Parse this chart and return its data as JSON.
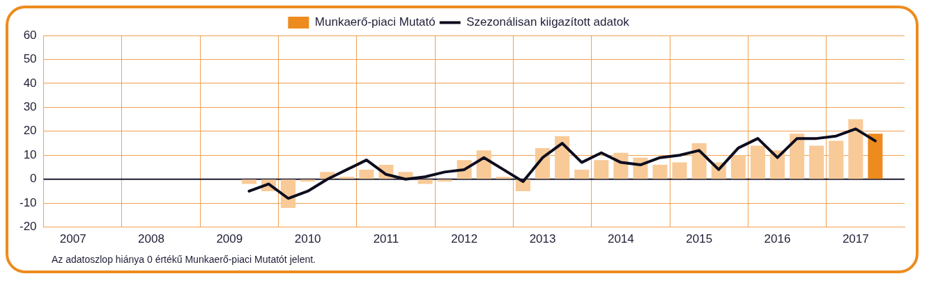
{
  "chart_data": {
    "type": "bar",
    "categories": [
      null,
      "2007",
      null,
      null,
      null,
      "2008",
      null,
      null,
      null,
      "2009",
      null,
      null,
      null,
      "2010",
      null,
      null,
      null,
      "2011",
      null,
      null,
      null,
      "2012",
      null,
      null,
      null,
      "2013",
      null,
      null,
      null,
      "2014",
      null,
      null,
      null,
      "2015",
      null,
      null,
      null,
      "2016",
      null,
      null,
      null,
      "2017",
      null,
      null
    ],
    "series": [
      {
        "name": "Munkaerő-piaci Mutató",
        "color": "#ed8b1e",
        "colors": [
          "#f8ca98",
          "#f8ca98",
          "#f8ca98",
          "#f8ca98",
          "#f8ca98",
          "#f8ca98",
          "#f8ca98",
          "#f8ca98",
          "#f8ca98",
          "#f8ca98",
          "#f8ca98",
          "#f8ca98",
          "#f8ca98",
          "#f8ca98",
          "#f8ca98",
          "#f8ca98",
          "#f8ca98",
          "#f8ca98",
          "#f8ca98",
          "#f8ca98",
          "#f8ca98",
          "#f8ca98",
          "#f8ca98",
          "#f8ca98",
          "#f8ca98",
          "#f8ca98",
          "#f8ca98",
          "#f8ca98",
          "#f8ca98",
          "#f8ca98",
          "#f8ca98",
          "#f8ca98",
          "#f8ca98",
          "#f8ca98",
          "#f8ca98",
          "#f8ca98",
          "#f8ca98",
          "#f8ca98",
          "#f8ca98",
          "#f8ca98",
          "#f8ca98",
          "#f8ca98",
          "#ed8b1e",
          "#f8ca98"
        ],
        "values": [
          null,
          null,
          null,
          null,
          null,
          null,
          null,
          null,
          null,
          null,
          -2,
          -5,
          -12,
          -1,
          3,
          1,
          4,
          6,
          3,
          -2,
          -1,
          8,
          12,
          1,
          -5,
          13,
          18,
          4,
          8,
          11,
          9,
          6,
          7,
          15,
          7,
          10,
          14,
          12,
          19,
          14,
          16,
          25,
          19,
          null
        ]
      },
      {
        "name": "Szezonálisan kiigazított adatok",
        "type": "line",
        "color": "#0d0d1f",
        "values": [
          null,
          null,
          null,
          null,
          null,
          null,
          null,
          null,
          null,
          null,
          -5,
          -2,
          -8,
          -5,
          0,
          4,
          8,
          2,
          0,
          1,
          3,
          4,
          9,
          4,
          -1,
          9,
          15,
          7,
          11,
          7,
          6,
          9,
          10,
          12,
          4,
          13,
          17,
          9,
          17,
          17,
          18,
          21,
          16,
          null
        ]
      }
    ],
    "ylim": [
      -20,
      60
    ],
    "yticks": [
      -20,
      -10,
      0,
      10,
      20,
      30,
      40,
      50,
      60
    ],
    "grid": true,
    "legend": "top",
    "ref_lines": [
      {
        "axis": "y",
        "value": 0,
        "color": "#1a1a2e"
      }
    ],
    "annotations": [
      "Az adatoszlop hiánya 0 értékű Munkaerő-piaci Mutatót jelent."
    ]
  }
}
